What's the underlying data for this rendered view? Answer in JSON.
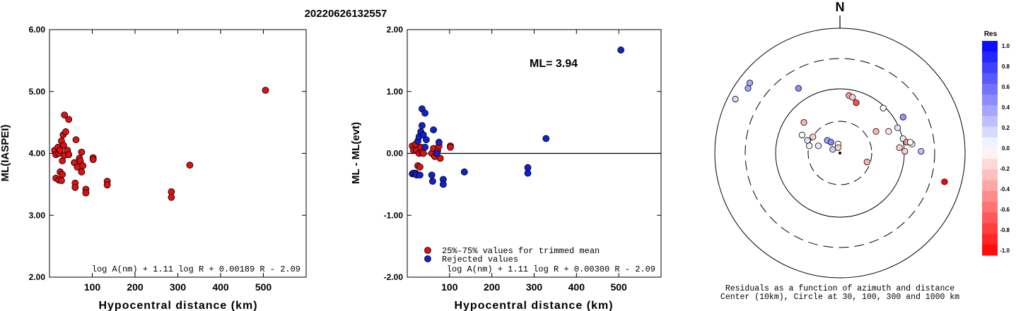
{
  "title": "20220626132557",
  "left_plot": {
    "ylabel": "ML(IASPEI)",
    "xlabel": "Hypocentral distance (km)",
    "formula": "log A(nm) + 1.11 log R + 0.00189 R - 2.09"
  },
  "middle_plot": {
    "ylabel": "ML - ML(evt)",
    "xlabel": "Hypocentral distance (km)",
    "ml_label": "ML= 3.94",
    "legend_trimmed": "25%-75% values for trimmed mean",
    "legend_rejected": "Rejected values",
    "formula": "log A(nm) + 1.11 log R + 0.00300 R - 2.09"
  },
  "polar_plot": {
    "north_label": "N",
    "caption_line1": "Residuals as a function of azimuth and distance",
    "caption_line2": "Center (10km), Circle at 30, 100, 300 and 1000 km",
    "colorbar_title": "Res",
    "colorbar_ticks": [
      "1.0",
      "0.8",
      "0.6",
      "0.4",
      "0.2",
      "0.0",
      "-0.2",
      "-0.4",
      "-0.6",
      "-0.8",
      "-1.0"
    ]
  },
  "colors": {
    "trimmed": "#dd1111",
    "rejected": "#1122cc",
    "point_edge": "#000000"
  },
  "chart_data": [
    {
      "type": "scatter",
      "name": "left",
      "xlim": [
        0,
        600
      ],
      "ylim": [
        2.0,
        6.0
      ],
      "xticks": [
        100,
        200,
        300,
        400,
        500
      ],
      "yticks": [
        2.0,
        3.0,
        4.0,
        5.0,
        6.0
      ],
      "points": [
        [
          12,
          4.05
        ],
        [
          15,
          3.6
        ],
        [
          15,
          3.98
        ],
        [
          20,
          4.1
        ],
        [
          22,
          3.57
        ],
        [
          22,
          4.0
        ],
        [
          25,
          3.7
        ],
        [
          25,
          4.05
        ],
        [
          28,
          4.2
        ],
        [
          28,
          3.56
        ],
        [
          30,
          3.66
        ],
        [
          30,
          3.88
        ],
        [
          32,
          4.3
        ],
        [
          33,
          4.13
        ],
        [
          35,
          4.62
        ],
        [
          35,
          3.97
        ],
        [
          38,
          4.35
        ],
        [
          42,
          4.05
        ],
        [
          45,
          4.55
        ],
        [
          45,
          3.98
        ],
        [
          58,
          3.85
        ],
        [
          60,
          3.52
        ],
        [
          60,
          3.45
        ],
        [
          62,
          4.22
        ],
        [
          65,
          3.78
        ],
        [
          70,
          3.92
        ],
        [
          72,
          3.88
        ],
        [
          75,
          4.02
        ],
        [
          75,
          3.7
        ],
        [
          78,
          3.8
        ],
        [
          85,
          3.42
        ],
        [
          85,
          3.36
        ],
        [
          102,
          3.93
        ],
        [
          102,
          3.9
        ],
        [
          135,
          3.55
        ],
        [
          135,
          3.49
        ],
        [
          285,
          3.38
        ],
        [
          285,
          3.29
        ],
        [
          328,
          3.81
        ],
        [
          505,
          5.02
        ]
      ]
    },
    {
      "type": "scatter",
      "name": "middle",
      "xlim": [
        0,
        600
      ],
      "ylim": [
        -2.0,
        2.0
      ],
      "xticks": [
        100,
        200,
        300,
        400,
        500
      ],
      "yticks": [
        2.0,
        1.0,
        0.0,
        -1.0,
        -2.0
      ],
      "series": [
        {
          "name": "25%-75% values for trimmed mean",
          "points": [
            [
              12,
              0.12
            ],
            [
              15,
              0.05
            ],
            [
              20,
              0.15
            ],
            [
              22,
              0.05
            ],
            [
              25,
              -0.2
            ],
            [
              28,
              0.0
            ],
            [
              30,
              -0.22
            ],
            [
              32,
              0.1
            ],
            [
              35,
              0.02
            ],
            [
              38,
              0.0
            ],
            [
              58,
              0.0
            ],
            [
              62,
              0.08
            ],
            [
              65,
              -0.05
            ],
            [
              72,
              0.05
            ],
            [
              75,
              0.12
            ],
            [
              78,
              -0.08
            ],
            [
              102,
              0.12
            ],
            [
              102,
              0.1
            ]
          ]
        },
        {
          "name": "Rejected values",
          "points": [
            [
              12,
              -0.33
            ],
            [
              15,
              -0.32
            ],
            [
              20,
              -0.32
            ],
            [
              22,
              -0.35
            ],
            [
              25,
              0.2
            ],
            [
              28,
              0.27
            ],
            [
              30,
              -0.35
            ],
            [
              32,
              0.35
            ],
            [
              35,
              0.45
            ],
            [
              35,
              0.72
            ],
            [
              38,
              0.3
            ],
            [
              42,
              0.1
            ],
            [
              42,
              0.65
            ],
            [
              45,
              0.22
            ],
            [
              58,
              -0.35
            ],
            [
              60,
              -0.45
            ],
            [
              62,
              0.38
            ],
            [
              70,
              0.0
            ],
            [
              75,
              0.18
            ],
            [
              85,
              -0.42
            ],
            [
              85,
              -0.5
            ],
            [
              135,
              -0.3
            ],
            [
              285,
              -0.23
            ],
            [
              285,
              -0.32
            ],
            [
              328,
              0.24
            ],
            [
              505,
              1.67
            ]
          ]
        }
      ],
      "hline": 0.0
    },
    {
      "type": "scatter",
      "name": "polar-residuals",
      "distance_circles_km": [
        30,
        100,
        300,
        1000
      ],
      "center_km": 10,
      "points_xy_units": [
        [
          -0.58,
          0.3,
          0.15
        ],
        [
          -0.51,
          0.36,
          0.35
        ],
        [
          -0.5,
          0.39,
          0.35
        ],
        [
          -0.23,
          0.36,
          0.45
        ],
        [
          0.05,
          0.32,
          -0.4
        ],
        [
          0.07,
          0.31,
          -0.2
        ],
        [
          0.09,
          0.28,
          -0.7
        ],
        [
          0.24,
          0.25,
          0.0
        ],
        [
          0.35,
          0.2,
          0.4
        ],
        [
          0.32,
          0.14,
          0.1
        ],
        [
          0.27,
          0.12,
          -0.1
        ],
        [
          0.2,
          0.12,
          -0.3
        ],
        [
          0.35,
          0.08,
          0.1
        ],
        [
          0.33,
          0.03,
          -0.2
        ],
        [
          0.36,
          0.01,
          -0.2
        ],
        [
          0.4,
          0.05,
          0.0
        ],
        [
          0.37,
          0.06,
          -0.4
        ],
        [
          0.39,
          0.06,
          0.0
        ],
        [
          0.45,
          0.01,
          0.25
        ],
        [
          0.15,
          -0.05,
          -0.3
        ],
        [
          -0.2,
          0.17,
          -0.3
        ],
        [
          -0.21,
          0.1,
          0.0
        ],
        [
          -0.18,
          0.07,
          0.1
        ],
        [
          -0.17,
          0.04,
          0.05
        ],
        [
          -0.15,
          0.09,
          -0.2
        ],
        [
          -0.12,
          0.04,
          0.1
        ],
        [
          -0.07,
          0.07,
          0.35
        ],
        [
          -0.05,
          0.06,
          0.45
        ],
        [
          -0.01,
          0.05,
          0.0
        ],
        [
          -0.04,
          0.02,
          0.2
        ],
        [
          -0.01,
          0.03,
          -0.2
        ],
        [
          0.58,
          -0.16,
          -1.2
        ]
      ]
    }
  ]
}
